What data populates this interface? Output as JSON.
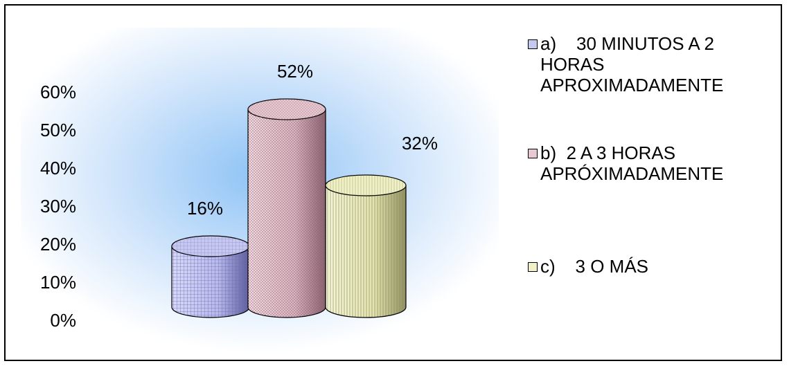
{
  "chart_data": {
    "type": "bar",
    "style": "3d-cylinder",
    "ylim": [
      0,
      60
    ],
    "y_ticks": [
      0,
      10,
      20,
      30,
      40,
      50,
      60
    ],
    "y_tick_format": "percent",
    "grid": false,
    "legend_position": "right",
    "series": [
      {
        "key": "a",
        "legend": "a)    30 MINUTOS A 2 HORAS APROXIMADAMENTE",
        "value": 16,
        "label": "16%",
        "color": "#c7c8f0",
        "pattern": "grid"
      },
      {
        "key": "b",
        "legend": "b)  2 A 3 HORAS APRÓXIMADAMENTE",
        "value": 52,
        "label": "52%",
        "color": "#e8c9d2",
        "pattern": "dots"
      },
      {
        "key": "c",
        "legend": "c)    3 O MÁS",
        "value": 32,
        "label": "32%",
        "color": "#f1f1c8",
        "pattern": "vlines"
      }
    ]
  }
}
